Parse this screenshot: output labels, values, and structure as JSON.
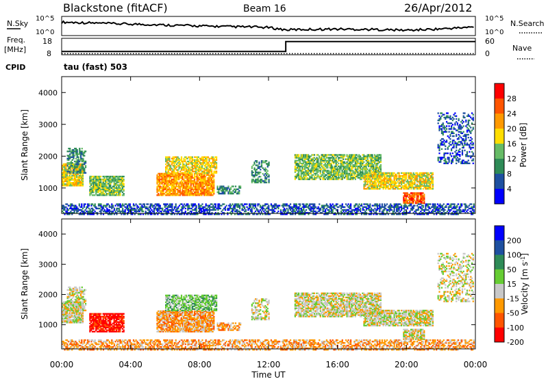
{
  "header": {
    "station": "Blackstone (fitACF)",
    "beam": "Beam 16",
    "date": "26/Apr/2012"
  },
  "colors": {
    "power": [
      "#0000ff",
      "#1e50a0",
      "#2e8b57",
      "#66bb66",
      "#ffdd00",
      "#ff9900",
      "#ff5500",
      "#ff0000"
    ],
    "velocity": [
      "#ff0000",
      "#ff5500",
      "#ff9900",
      "#c8c8c8",
      "#66cc33",
      "#2e8b57",
      "#1e50a0",
      "#0000ff"
    ],
    "ground_scatter": "#bebebe"
  },
  "chart_data": [
    {
      "type": "line",
      "name": "nsky-nsearch",
      "left_label": "N.Sky",
      "right_label": "N.Search",
      "left_ticks": [
        "10^5",
        "10^0"
      ],
      "right_ticks": [
        "10^5",
        "10^0"
      ],
      "x": [
        0,
        1,
        2,
        3,
        4,
        5,
        6,
        7,
        8,
        9,
        10,
        11,
        12,
        13,
        14,
        15,
        16,
        17,
        18,
        19,
        20,
        21,
        22,
        23,
        24
      ],
      "series": [
        {
          "values": [
            0.7,
            0.68,
            0.65,
            0.62,
            0.6,
            0.58,
            0.55,
            0.53,
            0.5,
            0.48,
            0.46,
            0.45,
            0.42,
            0.3,
            0.32,
            0.33,
            0.34,
            0.33,
            0.32,
            0.3,
            0.28,
            0.31,
            0.35,
            0.4,
            0.45
          ]
        }
      ]
    },
    {
      "type": "line",
      "name": "freq-nave",
      "left_label": "Freq.",
      "left_unit": "[MHz]",
      "right_label": "Nave",
      "left_ticks": [
        "18",
        "8"
      ],
      "right_ticks": [
        "60",
        "0"
      ],
      "cpid_label": "CPID",
      "cpid_text": "tau (fast) 503",
      "freq_x": [
        0,
        13,
        13,
        24
      ],
      "freq_values": [
        10,
        10,
        16,
        16
      ],
      "nave_values": [
        4,
        4,
        4,
        4
      ]
    },
    {
      "type": "heatmap",
      "name": "power",
      "ylabel": "Slant Range [km]",
      "colorbar_label": "Power [dB]",
      "colorbar_ticks": [
        "28",
        "24",
        "20",
        "16",
        "12",
        "8",
        "4"
      ],
      "yticks": [
        "4000",
        "3000",
        "2000",
        "1000"
      ],
      "ylim": [
        200,
        4500
      ],
      "xlim": [
        0,
        24
      ]
    },
    {
      "type": "heatmap",
      "name": "velocity",
      "ylabel": "Slant Range [km]",
      "colorbar_label": "Velocity [m s",
      "colorbar_unit_sup": "-1",
      "colorbar_ticks": [
        "200",
        "100",
        "50",
        "15",
        "-15",
        "-50",
        "-100",
        "-200"
      ],
      "yticks": [
        "4000",
        "3000",
        "2000",
        "1000"
      ],
      "ylim": [
        200,
        4500
      ],
      "xlim": [
        0,
        24
      ],
      "xticks": [
        "00:00",
        "04:00",
        "08:00",
        "12:00",
        "16:00",
        "20:00",
        "00:00"
      ],
      "xlabel": "Time UT"
    }
  ],
  "scatter_regions": [
    {
      "t0": 0.0,
      "t1": 1.2,
      "r0": 1100,
      "r1": 1800,
      "power": 4,
      "vel": 3,
      "density": 0.9
    },
    {
      "t0": 0.3,
      "t1": 1.4,
      "r0": 1500,
      "r1": 2300,
      "power": 2,
      "vel": 3,
      "density": 0.6
    },
    {
      "t0": 1.6,
      "t1": 3.6,
      "r0": 800,
      "r1": 1400,
      "power": 3,
      "vel": 0,
      "density": 0.85
    },
    {
      "t0": 5.5,
      "t1": 8.8,
      "r0": 800,
      "r1": 1500,
      "power": 5,
      "vel": 2,
      "density": 0.85
    },
    {
      "t0": 6.0,
      "t1": 9.0,
      "r0": 1500,
      "r1": 2000,
      "power": 4,
      "vel": 4,
      "density": 0.7
    },
    {
      "t0": 9.0,
      "t1": 10.4,
      "r0": 850,
      "r1": 1100,
      "power": 2,
      "vel": 2,
      "density": 0.6
    },
    {
      "t0": 11.0,
      "t1": 12.0,
      "r0": 1200,
      "r1": 1900,
      "power": 2,
      "vel": 3,
      "density": 0.5
    },
    {
      "t0": 13.5,
      "t1": 18.5,
      "r0": 1300,
      "r1": 2100,
      "power": 3,
      "vel": 3,
      "density": 0.75
    },
    {
      "t0": 17.5,
      "t1": 21.5,
      "r0": 1000,
      "r1": 1500,
      "power": 4,
      "vel": 3,
      "density": 0.8
    },
    {
      "t0": 19.8,
      "t1": 21.0,
      "r0": 550,
      "r1": 900,
      "power": 6,
      "vel": 3,
      "density": 0.8
    },
    {
      "t0": 21.8,
      "t1": 23.9,
      "r0": 1800,
      "r1": 3400,
      "power": 1,
      "vel": 3,
      "density": 0.35
    },
    {
      "t0": 0.0,
      "t1": 23.9,
      "r0": 200,
      "r1": 520,
      "power": 1,
      "vel": 2,
      "density": 0.55
    }
  ]
}
